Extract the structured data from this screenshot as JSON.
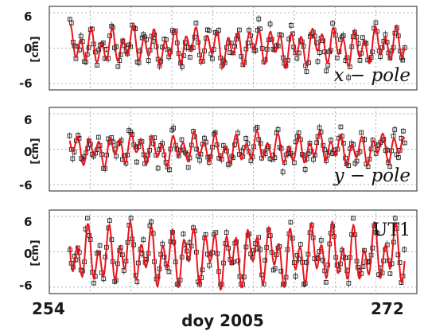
{
  "chart_data": [
    {
      "type": "scatter",
      "label": "x − pole",
      "ylabel": "[cm]",
      "yticks": [
        "6",
        "0",
        "-6"
      ],
      "ylim": [
        -6,
        6
      ],
      "xlim": [
        254,
        272
      ],
      "grid": true,
      "series": [
        {
          "style": "observations",
          "color": "#222222",
          "x": [],
          "y": []
        },
        {
          "style": "model",
          "color": "#e8141c",
          "x": [],
          "y": []
        }
      ],
      "signal": {
        "offset": 0.3,
        "amp1": 2.2,
        "period1": 0.515,
        "amp2": 1.2,
        "period2": 1.0,
        "phase1": 0.4,
        "phase2": 1.3,
        "noise": 1.6
      }
    },
    {
      "type": "scatter",
      "label": "y − pole",
      "ylabel": "[cm]",
      "yticks": [
        "6",
        "0",
        "-6"
      ],
      "ylim": [
        -6,
        6
      ],
      "xlim": [
        254,
        272
      ],
      "grid": true,
      "series": [
        {
          "style": "observations",
          "color": "#222222",
          "x": [],
          "y": []
        },
        {
          "style": "model",
          "color": "#e8141c",
          "x": [],
          "y": []
        }
      ],
      "signal": {
        "offset": 0.0,
        "amp1": 1.8,
        "period1": 0.515,
        "amp2": 1.0,
        "period2": 1.0,
        "phase1": 1.9,
        "phase2": 0.5,
        "noise": 1.5
      }
    },
    {
      "type": "scatter",
      "label": "UT1",
      "ylabel": "[cm]",
      "yticks": [
        "6",
        "0",
        "-6"
      ],
      "ylim": [
        -6,
        6
      ],
      "xlim": [
        254,
        272
      ],
      "grid": true,
      "series": [
        {
          "style": "observations",
          "color": "#222222",
          "x": [],
          "y": []
        },
        {
          "style": "model",
          "color": "#e8141c",
          "x": [],
          "y": []
        }
      ],
      "signal": {
        "offset": -0.6,
        "amp1": 3.4,
        "period1": 0.52,
        "amp2": 2.2,
        "period2": 1.0,
        "phase1": 0.9,
        "phase2": 2.2,
        "noise": 1.9
      }
    }
  ],
  "xaxis": {
    "start_label": "254",
    "end_label": "272",
    "label": "doy 2005"
  }
}
